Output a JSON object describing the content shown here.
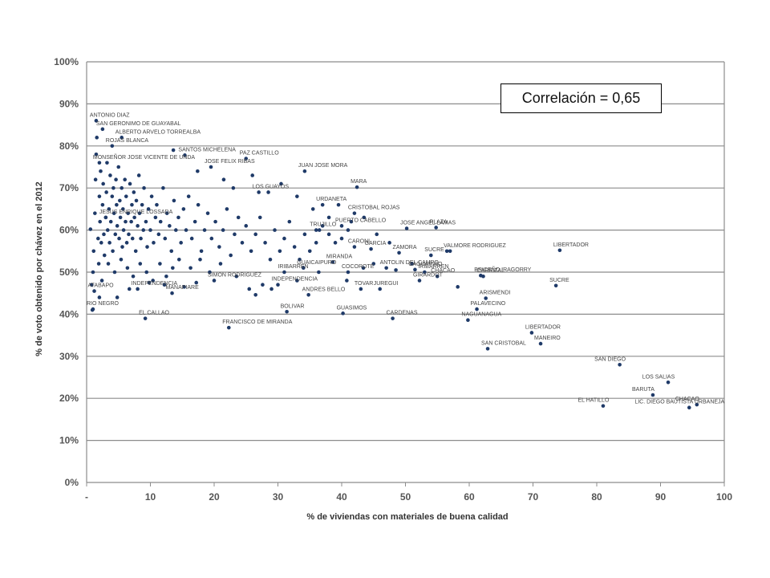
{
  "annotation": "Correlación = 0,65",
  "chart_data": {
    "type": "scatter",
    "title": "",
    "xlabel": "% de viviendas con materiales de buena calidad",
    "ylabel": "% de voto obtenido por chávez en el 2012",
    "xlim": [
      0,
      100
    ],
    "ylim": [
      0,
      100
    ],
    "x_ticks": [
      "-",
      "10",
      "20",
      "30",
      "40",
      "50",
      "60",
      "70",
      "80",
      "90",
      "100"
    ],
    "y_ticks": [
      "0%",
      "10%",
      "20%",
      "30%",
      "40%",
      "50%",
      "60%",
      "70%",
      "80%",
      "90%",
      "100%"
    ],
    "grid": true,
    "marker_color": "#1f3a68",
    "labeled_points": [
      {
        "name": "CHACAO",
        "x": 95.7,
        "y": 18.5
      },
      {
        "name": "LIC. DIEGO BAUTISTA URBANEJA",
        "x": 94.5,
        "y": 17.8
      },
      {
        "name": "LOS SALIAS",
        "x": 91.2,
        "y": 23.8
      },
      {
        "name": "BARUTA",
        "x": 88.8,
        "y": 20.8
      },
      {
        "name": "EL HATILLO",
        "x": 81.0,
        "y": 18.2
      },
      {
        "name": "SAN DIEGO",
        "x": 83.6,
        "y": 28.0
      },
      {
        "name": "MANEIRO",
        "x": 71.2,
        "y": 33.0
      },
      {
        "name": "LIBERTADOR",
        "x": 69.8,
        "y": 35.6
      },
      {
        "name": "SAN CRISTOBAL",
        "x": 62.9,
        "y": 31.8
      },
      {
        "name": "LIBERTADOR",
        "x": 74.2,
        "y": 55.2
      },
      {
        "name": "SUCRE",
        "x": 73.6,
        "y": 46.8
      },
      {
        "name": "PALAVECINO",
        "x": 61.2,
        "y": 41.2
      },
      {
        "name": "ARISMENDI",
        "x": 62.6,
        "y": 43.8
      },
      {
        "name": "NAGUANAGUA",
        "x": 59.8,
        "y": 38.6
      },
      {
        "name": "CARRIZAL",
        "x": 62.2,
        "y": 49.0
      },
      {
        "name": "BRICEÑO IRAGORRY",
        "x": 61.8,
        "y": 49.2
      },
      {
        "name": "VALMORE RODRIGUEZ",
        "x": 57.0,
        "y": 55.0
      },
      {
        "name": "SUCRE",
        "x": 54.0,
        "y": 54.0
      },
      {
        "name": "CHACAO",
        "x": 55.0,
        "y": 49.0
      },
      {
        "name": "IRIBARREN",
        "x": 53.0,
        "y": 50.0
      },
      {
        "name": "GIRARDOT",
        "x": 52.2,
        "y": 48.0
      },
      {
        "name": "CAGUAPIRO",
        "x": 51.5,
        "y": 50.6
      },
      {
        "name": "PLAZA",
        "x": 54.8,
        "y": 60.6
      },
      {
        "name": "JOSE ANGEL LAMAS",
        "x": 50.2,
        "y": 60.4
      },
      {
        "name": "ZAMORA",
        "x": 49.0,
        "y": 54.6
      },
      {
        "name": "CARDENAS",
        "x": 48.0,
        "y": 39.0
      },
      {
        "name": "JUREGUI",
        "x": 46.0,
        "y": 46.0
      },
      {
        "name": "TOVAR",
        "x": 43.0,
        "y": 46.0
      },
      {
        "name": "GUASIMOS",
        "x": 40.2,
        "y": 40.2
      },
      {
        "name": "GARCIA",
        "x": 44.6,
        "y": 55.5
      },
      {
        "name": "CARONI",
        "x": 42.0,
        "y": 56.0
      },
      {
        "name": "ANTOLIN DEL CAMPO",
        "x": 47.0,
        "y": 51.0
      },
      {
        "name": "COCOROTE",
        "x": 41.0,
        "y": 50.0
      },
      {
        "name": "MIRANDA",
        "x": 38.6,
        "y": 52.4
      },
      {
        "name": "MARA",
        "x": 42.4,
        "y": 70.2
      },
      {
        "name": "CRISTOBAL ROJAS",
        "x": 42.0,
        "y": 64.0
      },
      {
        "name": "PUERTO CABELLO",
        "x": 40.0,
        "y": 61.0
      },
      {
        "name": "URDANETA",
        "x": 37.0,
        "y": 66.0
      },
      {
        "name": "JUAN JOSE MORA",
        "x": 34.2,
        "y": 74.0
      },
      {
        "name": "TRUJILLO",
        "x": 36.0,
        "y": 60.0
      },
      {
        "name": "ANDRES BELLO",
        "x": 34.8,
        "y": 44.6
      },
      {
        "name": "BOLIVAR",
        "x": 31.4,
        "y": 40.6
      },
      {
        "name": "INDEPENDENCIA",
        "x": 30.0,
        "y": 47.0
      },
      {
        "name": "GUAICAIPURO",
        "x": 34.0,
        "y": 51.0
      },
      {
        "name": "IRIBARREN",
        "x": 31.0,
        "y": 50.0
      },
      {
        "name": "LOS GUAYOS",
        "x": 27.0,
        "y": 69.0
      },
      {
        "name": "PAZ CASTILLO",
        "x": 25.0,
        "y": 77.0
      },
      {
        "name": "SIMON RODRIGUEZ",
        "x": 20.0,
        "y": 48.0
      },
      {
        "name": "FRANCISCO DE MIRANDA",
        "x": 22.3,
        "y": 36.8
      },
      {
        "name": "EL CALLAO",
        "x": 9.2,
        "y": 39.0
      },
      {
        "name": "SANTOS MICHELENA",
        "x": 15.4,
        "y": 77.8
      },
      {
        "name": "JOSE FELIX RIBAS",
        "x": 19.5,
        "y": 75.0
      },
      {
        "name": "INDEPENDENCIA",
        "x": 8.0,
        "y": 46.0
      },
      {
        "name": "RIO NEGRO",
        "x": 1.0,
        "y": 41.2
      },
      {
        "name": "ATABAPO",
        "x": 1.2,
        "y": 45.5
      },
      {
        "name": "MANAPIARE",
        "x": 13.4,
        "y": 45.0
      },
      {
        "name": "ANTONIO DIAZ",
        "x": 1.5,
        "y": 86.0
      },
      {
        "name": "SAN GERONIMO DE GUAYABAL",
        "x": 2.5,
        "y": 84.0
      },
      {
        "name": "ALBERTO ARVELO TORREALBA",
        "x": 5.5,
        "y": 82.0
      },
      {
        "name": "ROJAS BLANCA",
        "x": 4.0,
        "y": 80.0
      },
      {
        "name": "JESUS ENRIQUE LOSSADA",
        "x": 3.0,
        "y": 63.0
      },
      {
        "name": "MONSEÑOR JOSE VICENTE DE UNDA",
        "x": 2.0,
        "y": 76.0
      }
    ],
    "points": [
      [
        0.6,
        60.2
      ],
      [
        0.8,
        47.0
      ],
      [
        0.9,
        41.0
      ],
      [
        1.1,
        55.0
      ],
      [
        1.3,
        64.0
      ],
      [
        1.4,
        72.0
      ],
      [
        1.5,
        78.0
      ],
      [
        1.6,
        82.0
      ],
      [
        1.8,
        58.0
      ],
      [
        1.9,
        52.0
      ],
      [
        2.0,
        68.0
      ],
      [
        2.1,
        62.0
      ],
      [
        2.2,
        74.0
      ],
      [
        2.3,
        57.0
      ],
      [
        2.5,
        66.0
      ],
      [
        2.6,
        71.0
      ],
      [
        2.7,
        59.0
      ],
      [
        2.8,
        54.0
      ],
      [
        3.0,
        63.0
      ],
      [
        3.1,
        69.0
      ],
      [
        3.2,
        76.0
      ],
      [
        3.3,
        60.0
      ],
      [
        3.5,
        65.0
      ],
      [
        3.6,
        57.0
      ],
      [
        3.7,
        73.0
      ],
      [
        3.8,
        62.0
      ],
      [
        4.0,
        68.0
      ],
      [
        4.1,
        55.0
      ],
      [
        4.2,
        70.0
      ],
      [
        4.3,
        64.0
      ],
      [
        4.5,
        59.0
      ],
      [
        4.6,
        72.0
      ],
      [
        4.7,
        66.0
      ],
      [
        4.8,
        61.0
      ],
      [
        5.0,
        75.0
      ],
      [
        5.1,
        58.0
      ],
      [
        5.2,
        67.0
      ],
      [
        5.3,
        63.0
      ],
      [
        5.5,
        70.0
      ],
      [
        5.6,
        56.0
      ],
      [
        5.7,
        65.0
      ],
      [
        5.8,
        60.0
      ],
      [
        6.0,
        72.0
      ],
      [
        6.1,
        62.0
      ],
      [
        6.2,
        68.0
      ],
      [
        6.3,
        57.0
      ],
      [
        6.5,
        64.0
      ],
      [
        6.6,
        59.0
      ],
      [
        6.8,
        71.0
      ],
      [
        7.0,
        62.0
      ],
      [
        7.1,
        66.0
      ],
      [
        7.2,
        58.0
      ],
      [
        7.4,
        69.0
      ],
      [
        7.5,
        63.0
      ],
      [
        7.7,
        55.0
      ],
      [
        7.8,
        67.0
      ],
      [
        8.0,
        61.0
      ],
      [
        8.2,
        73.0
      ],
      [
        8.3,
        64.0
      ],
      [
        8.5,
        58.0
      ],
      [
        8.7,
        66.0
      ],
      [
        8.9,
        60.0
      ],
      [
        9.0,
        70.0
      ],
      [
        9.3,
        62.0
      ],
      [
        9.5,
        56.0
      ],
      [
        9.7,
        65.0
      ],
      [
        10.0,
        60.0
      ],
      [
        10.2,
        68.0
      ],
      [
        10.5,
        57.0
      ],
      [
        10.8,
        63.0
      ],
      [
        11.0,
        66.0
      ],
      [
        11.3,
        59.0
      ],
      [
        11.6,
        62.0
      ],
      [
        12.0,
        70.0
      ],
      [
        12.3,
        58.0
      ],
      [
        12.6,
        64.0
      ],
      [
        13.0,
        61.0
      ],
      [
        13.3,
        55.0
      ],
      [
        13.7,
        67.0
      ],
      [
        14.0,
        60.0
      ],
      [
        14.4,
        63.0
      ],
      [
        14.8,
        57.0
      ],
      [
        15.2,
        65.0
      ],
      [
        15.6,
        60.0
      ],
      [
        16.0,
        68.0
      ],
      [
        16.5,
        58.0
      ],
      [
        17.0,
        62.0
      ],
      [
        17.5,
        66.0
      ],
      [
        18.0,
        55.0
      ],
      [
        18.5,
        60.0
      ],
      [
        19.0,
        64.0
      ],
      [
        19.6,
        58.0
      ],
      [
        20.2,
        62.0
      ],
      [
        20.8,
        56.0
      ],
      [
        21.4,
        60.0
      ],
      [
        22.0,
        65.0
      ],
      [
        22.6,
        54.0
      ],
      [
        23.2,
        59.0
      ],
      [
        23.8,
        63.0
      ],
      [
        24.4,
        57.0
      ],
      [
        25.0,
        61.0
      ],
      [
        25.8,
        55.0
      ],
      [
        26.5,
        59.0
      ],
      [
        27.2,
        63.0
      ],
      [
        28.0,
        57.0
      ],
      [
        28.8,
        53.0
      ],
      [
        29.5,
        60.0
      ],
      [
        30.3,
        55.0
      ],
      [
        31.0,
        58.0
      ],
      [
        31.8,
        62.0
      ],
      [
        32.6,
        56.0
      ],
      [
        33.4,
        53.0
      ],
      [
        34.2,
        59.0
      ],
      [
        35.0,
        55.0
      ],
      [
        36.0,
        57.0
      ],
      [
        37.0,
        61.0
      ],
      [
        38.0,
        59.0
      ],
      [
        39.0,
        57.0
      ],
      [
        40.0,
        58.0
      ],
      [
        41.0,
        60.0
      ],
      [
        1.0,
        50.0
      ],
      [
        2.4,
        48.0
      ],
      [
        3.4,
        52.0
      ],
      [
        4.4,
        50.0
      ],
      [
        5.4,
        53.0
      ],
      [
        6.4,
        51.0
      ],
      [
        7.3,
        49.0
      ],
      [
        8.4,
        52.0
      ],
      [
        9.4,
        50.0
      ],
      [
        10.4,
        48.0
      ],
      [
        11.5,
        52.0
      ],
      [
        12.5,
        49.0
      ],
      [
        13.5,
        51.0
      ],
      [
        14.5,
        53.0
      ],
      [
        16.3,
        51.0
      ],
      [
        17.8,
        53.0
      ],
      [
        19.3,
        50.0
      ],
      [
        21.0,
        52.0
      ],
      [
        23.5,
        49.0
      ],
      [
        25.5,
        46.0
      ],
      [
        26.5,
        44.6
      ],
      [
        27.6,
        47.0
      ],
      [
        29.0,
        46.0
      ],
      [
        33.0,
        48.0
      ],
      [
        36.4,
        50.0
      ],
      [
        40.8,
        48.0
      ],
      [
        45.0,
        52.0
      ],
      [
        2.0,
        44.0
      ],
      [
        4.8,
        44.0
      ],
      [
        6.7,
        46.0
      ],
      [
        9.8,
        47.5
      ],
      [
        12.2,
        47.0
      ],
      [
        15.3,
        46.5
      ],
      [
        17.2,
        47.5
      ],
      [
        13.6,
        79.0
      ],
      [
        17.4,
        74.0
      ],
      [
        21.5,
        72.0
      ],
      [
        23.0,
        70.0
      ],
      [
        26.0,
        73.0
      ],
      [
        28.5,
        69.0
      ],
      [
        30.5,
        71.0
      ],
      [
        33.0,
        68.0
      ],
      [
        35.5,
        65.0
      ],
      [
        38.0,
        63.0
      ],
      [
        39.5,
        66.0
      ],
      [
        41.5,
        62.0
      ],
      [
        43.5,
        63.0
      ],
      [
        45.5,
        59.0
      ],
      [
        47.5,
        57.0
      ],
      [
        36.5,
        60.0
      ],
      [
        43.4,
        51.0
      ],
      [
        51.0,
        52.0
      ],
      [
        56.5,
        55.0
      ],
      [
        48.5,
        50.5
      ],
      [
        58.2,
        46.5
      ]
    ]
  }
}
